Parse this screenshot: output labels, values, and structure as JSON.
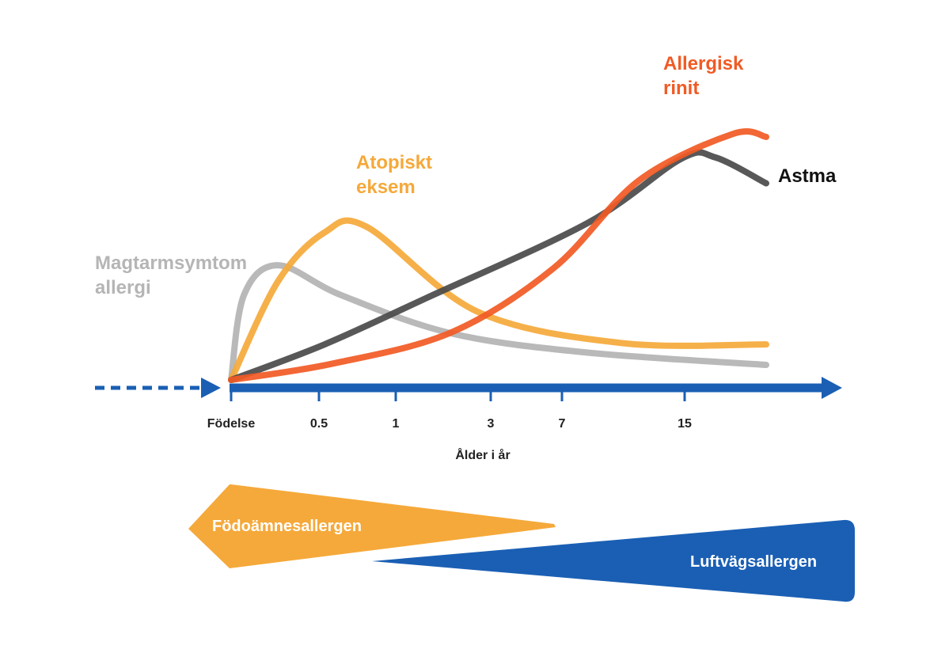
{
  "chart_data": {
    "type": "line",
    "xlabel": "Ålder i år",
    "ylabel": "",
    "title": "",
    "x_ticks": [
      "Födelse",
      "0.5",
      "1",
      "3",
      "7",
      "15"
    ],
    "series": [
      {
        "name": "Magtarmsymtom allergi",
        "label_lines": [
          "Magtarmsymtom",
          "allergi"
        ],
        "color": "#b5b5b5",
        "points": [
          [
            0,
            0
          ],
          [
            0.15,
            6.2
          ],
          [
            0.55,
            8.4
          ],
          [
            1.3,
            6.2
          ],
          [
            2.6,
            3.4
          ],
          [
            4.2,
            2.0
          ],
          [
            6.3,
            1.1
          ]
        ]
      },
      {
        "name": "Atopiskt eksem",
        "label_lines": [
          "Atopiskt",
          "eksem"
        ],
        "color": "#f5a93a",
        "points": [
          [
            0,
            0
          ],
          [
            0.55,
            7.2
          ],
          [
            1.1,
            10.8
          ],
          [
            1.6,
            11.2
          ],
          [
            2.9,
            5.0
          ],
          [
            4.6,
            2.7
          ],
          [
            6.3,
            2.6
          ]
        ]
      },
      {
        "name": "Astma",
        "label_lines": [
          "Astma"
        ],
        "color": "#4a4a4a",
        "points": [
          [
            0,
            0
          ],
          [
            1.1,
            2.6
          ],
          [
            2.3,
            6.0
          ],
          [
            4.2,
            11.5
          ],
          [
            5.3,
            16.2
          ],
          [
            5.7,
            16.3
          ],
          [
            6.3,
            14.4
          ]
        ]
      },
      {
        "name": "Allergisk rinit",
        "label_lines": [
          "Allergisk",
          "rinit"
        ],
        "color": "#f15a24",
        "points": [
          [
            0,
            0
          ],
          [
            1.2,
            1.2
          ],
          [
            2.6,
            3.5
          ],
          [
            3.8,
            8.2
          ],
          [
            4.8,
            14.6
          ],
          [
            5.9,
            18.0
          ],
          [
            6.3,
            17.8
          ]
        ]
      }
    ],
    "ylim": [
      0,
      20
    ],
    "bands": [
      {
        "label": "Födoämnesallergen",
        "color": "#f5a93a"
      },
      {
        "label": "Luftvägsallergen",
        "color": "#1a5fb4"
      }
    ],
    "axis_color": "#1a5fb4"
  }
}
